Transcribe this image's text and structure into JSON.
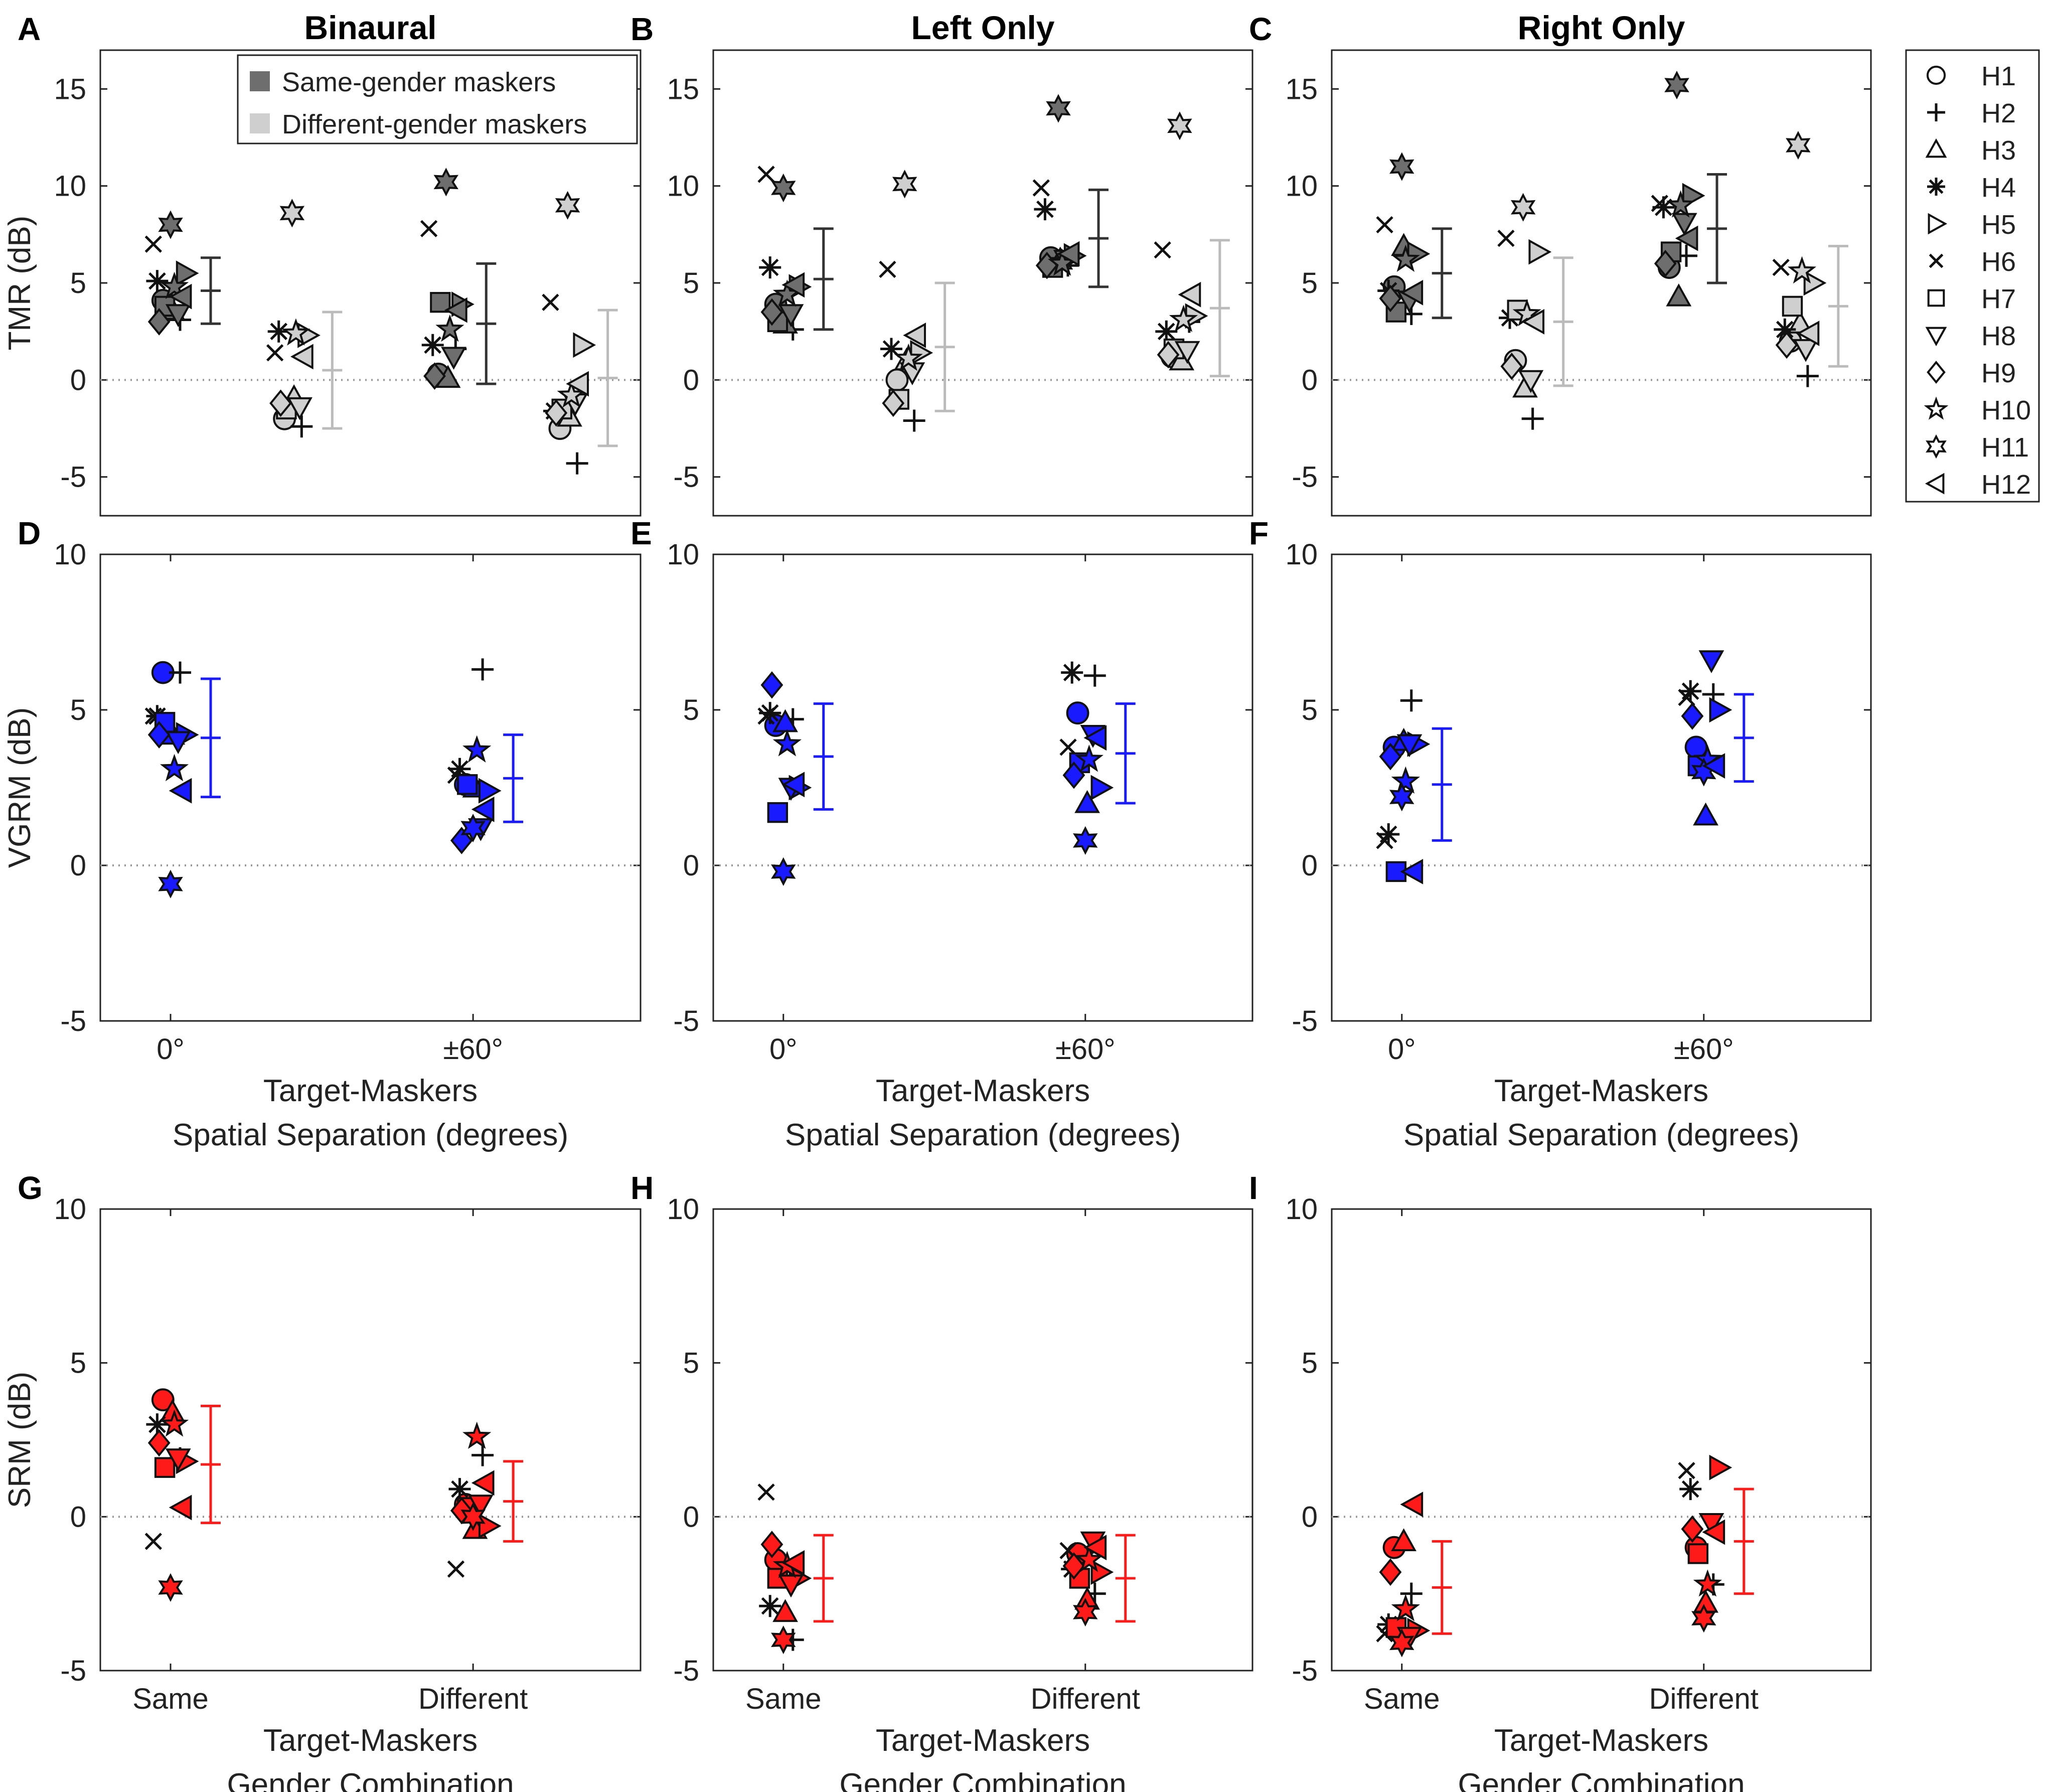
{
  "panels": [
    {
      "id": "A",
      "letter": "A",
      "title": "Binaural",
      "row": 0,
      "col": 0
    },
    {
      "id": "B",
      "letter": "B",
      "title": "Left Only",
      "row": 0,
      "col": 1
    },
    {
      "id": "C",
      "letter": "C",
      "title": "Right Only",
      "row": 0,
      "col": 2
    },
    {
      "id": "D",
      "letter": "D",
      "title": "",
      "row": 1,
      "col": 0
    },
    {
      "id": "E",
      "letter": "E",
      "title": "",
      "row": 1,
      "col": 1
    },
    {
      "id": "F",
      "letter": "F",
      "title": "",
      "row": 1,
      "col": 2
    },
    {
      "id": "G",
      "letter": "G",
      "title": "",
      "row": 2,
      "col": 0
    },
    {
      "id": "H",
      "letter": "H",
      "title": "",
      "row": 2,
      "col": 1
    },
    {
      "id": "I",
      "letter": "I",
      "title": "",
      "row": 2,
      "col": 2
    }
  ],
  "row_axes": [
    {
      "ylabel": "TMR (dB)",
      "ylim": [
        -7,
        17
      ],
      "yticks": [
        -5,
        0,
        5,
        10,
        15
      ],
      "xticks": [],
      "xlabel_lines": []
    },
    {
      "ylabel": "VGRM (dB)",
      "ylim": [
        -5,
        10
      ],
      "yticks": [
        -5,
        0,
        5,
        10
      ],
      "xticks": [
        "0°",
        "±60°"
      ],
      "xlabel_lines": [
        "Target-Maskers",
        "Spatial Separation (degrees)"
      ]
    },
    {
      "ylabel": "SRM (dB)",
      "ylim": [
        -5,
        10
      ],
      "yticks": [
        -5,
        0,
        5,
        10
      ],
      "xticks": [
        "Same",
        "Different"
      ],
      "xlabel_lines": [
        "Target-Maskers",
        "Gender Combination"
      ]
    }
  ],
  "tick_labels": {
    "zero_deg": "0°",
    "sixty_deg": "±60°"
  },
  "subject_legend": [
    {
      "label": "H1",
      "marker": "circle-icon"
    },
    {
      "label": "H2",
      "marker": "plus-icon"
    },
    {
      "label": "H3",
      "marker": "triangle-up-icon"
    },
    {
      "label": "H4",
      "marker": "asterisk-icon"
    },
    {
      "label": "H5",
      "marker": "triangle-right-icon"
    },
    {
      "label": "H6",
      "marker": "x-icon"
    },
    {
      "label": "H7",
      "marker": "square-icon"
    },
    {
      "label": "H8",
      "marker": "triangle-down-icon"
    },
    {
      "label": "H9",
      "marker": "diamond-icon"
    },
    {
      "label": "H10",
      "marker": "pentagram-icon"
    },
    {
      "label": "H11",
      "marker": "hexagram-icon"
    },
    {
      "label": "H12",
      "marker": "triangle-left-icon"
    }
  ],
  "condition_legend": [
    {
      "label": "Same-gender maskers",
      "color": "#6e6e6e"
    },
    {
      "label": "Different-gender maskers",
      "color": "#cfcfcf"
    }
  ],
  "colors": {
    "same": "#6e6e6e",
    "diff": "#cfcfcf",
    "same_err": "#333333",
    "diff_err": "#bbbbbb",
    "vgrm": "#1a1aff",
    "srm": "#ff1a1a"
  },
  "chart_data": [
    {
      "panel": "A",
      "type": "scatter",
      "conditions": [
        {
          "x": 1,
          "cat": "same",
          "values": [
            4.1,
            3.1,
            3.6,
            5.1,
            5.5,
            7.0,
            3.8,
            3.4,
            3.0,
            4.8,
            8.0,
            4.3
          ],
          "mean": 4.6,
          "err": 1.7
        },
        {
          "x": 2,
          "cat": "diff",
          "values": [
            -2.0,
            -2.4,
            -0.9,
            2.5,
            2.3,
            1.4,
            -1.5,
            -1.4,
            -1.2,
            2.4,
            8.6,
            1.2
          ],
          "mean": 0.5,
          "err": 3.0
        },
        {
          "x": 3,
          "cat": "same",
          "values": [
            0.3,
            1.6,
            0.1,
            1.8,
            3.9,
            7.8,
            4.0,
            1.2,
            0.2,
            2.6,
            10.2,
            3.6
          ],
          "mean": 2.9,
          "err": 3.1
        },
        {
          "x": 4,
          "cat": "diff",
          "values": [
            -2.5,
            -4.3,
            -1.9,
            -1.6,
            1.8,
            4.0,
            -1.5,
            -1.2,
            -1.7,
            -0.8,
            9.0,
            -0.2
          ],
          "mean": 0.1,
          "err": 3.5
        }
      ]
    },
    {
      "panel": "B",
      "type": "scatter",
      "conditions": [
        {
          "x": 1,
          "cat": "same",
          "values": [
            3.9,
            2.6,
            2.9,
            5.8,
            4.8,
            10.6,
            3.0,
            3.4,
            3.5,
            4.4,
            9.9,
            4.9
          ],
          "mean": 5.2,
          "err": 2.6
        },
        {
          "x": 2,
          "cat": "diff",
          "values": [
            0.0,
            -2.1,
            1.0,
            1.6,
            1.4,
            5.7,
            -1.0,
            0.4,
            -1.2,
            1.1,
            10.1,
            2.3
          ],
          "mean": 1.7,
          "err": 3.3
        },
        {
          "x": 3,
          "cat": "same",
          "values": [
            6.3,
            5.9,
            6.2,
            8.8,
            6.4,
            9.9,
            5.8,
            6.2,
            5.9,
            6.0,
            14.0,
            6.5
          ],
          "mean": 7.3,
          "err": 2.5
        },
        {
          "x": 4,
          "cat": "diff",
          "values": [
            1.2,
            3.0,
            1.0,
            2.5,
            3.3,
            6.7,
            1.6,
            1.5,
            1.3,
            3.1,
            13.1,
            4.4
          ],
          "mean": 3.7,
          "err": 3.5
        }
      ]
    },
    {
      "panel": "C",
      "type": "scatter",
      "conditions": [
        {
          "x": 1,
          "cat": "same",
          "values": [
            4.8,
            3.4,
            6.9,
            4.6,
            6.5,
            8.0,
            3.5,
            4.1,
            4.2,
            6.2,
            11.0,
            4.5
          ],
          "mean": 5.5,
          "err": 2.3
        },
        {
          "x": 2,
          "cat": "diff",
          "values": [
            1.0,
            -2.0,
            -0.4,
            3.2,
            6.6,
            7.3,
            3.6,
            0.0,
            0.7,
            3.4,
            8.9,
            3.0
          ],
          "mean": 3.0,
          "err": 3.3
        },
        {
          "x": 3,
          "cat": "same",
          "values": [
            5.8,
            6.4,
            4.3,
            8.9,
            9.5,
            9.1,
            6.6,
            8.1,
            6.0,
            9.0,
            15.2,
            7.3
          ],
          "mean": 7.8,
          "err": 2.8
        },
        {
          "x": 4,
          "cat": "diff",
          "values": [
            2.0,
            0.2,
            2.9,
            2.6,
            5.0,
            5.8,
            3.8,
            1.6,
            1.8,
            5.6,
            12.1,
            2.4
          ],
          "mean": 3.8,
          "err": 3.1
        }
      ]
    },
    {
      "panel": "D",
      "type": "scatter",
      "conditions": [
        {
          "x": 1,
          "cat": "vgrm",
          "values": [
            6.2,
            6.2,
            4.2,
            4.8,
            4.2,
            4.8,
            4.6,
            4.0,
            4.2,
            3.1,
            -0.6,
            2.4
          ],
          "mean": 4.1,
          "err": 1.9
        },
        {
          "x": 2,
          "cat": "vgrm",
          "values": [
            2.6,
            6.3,
            2.5,
            3.1,
            2.4,
            2.9,
            2.6,
            1.2,
            0.8,
            3.7,
            1.2,
            1.8
          ],
          "mean": 2.8,
          "err": 1.4
        }
      ]
    },
    {
      "panel": "E",
      "type": "scatter",
      "conditions": [
        {
          "x": 1,
          "cat": "vgrm",
          "values": [
            4.5,
            4.7,
            4.6,
            4.9,
            2.5,
            4.8,
            1.7,
            2.5,
            5.8,
            3.9,
            -0.2,
            2.6
          ],
          "mean": 3.5,
          "err": 1.7
        },
        {
          "x": 2,
          "cat": "vgrm",
          "values": [
            4.9,
            6.1,
            2.0,
            6.2,
            2.5,
            3.8,
            3.3,
            4.2,
            2.9,
            3.4,
            0.8,
            4.1
          ],
          "mean": 3.6,
          "err": 1.6
        }
      ]
    },
    {
      "panel": "F",
      "type": "scatter",
      "conditions": [
        {
          "x": 1,
          "cat": "vgrm",
          "values": [
            3.8,
            5.3,
            4.0,
            1.0,
            3.9,
            0.8,
            -0.2,
            3.9,
            3.5,
            2.7,
            2.2,
            -0.2
          ],
          "mean": 2.6,
          "err": 1.8
        },
        {
          "x": 2,
          "cat": "vgrm",
          "values": [
            3.8,
            5.5,
            1.6,
            5.6,
            5.0,
            5.4,
            3.2,
            6.6,
            4.8,
            3.4,
            3.0,
            3.2
          ],
          "mean": 4.1,
          "err": 1.4
        }
      ]
    },
    {
      "panel": "G",
      "type": "scatter",
      "conditions": [
        {
          "x": 1,
          "cat": "srm",
          "values": [
            3.8,
            1.9,
            3.4,
            3.0,
            1.8,
            -0.8,
            1.6,
            1.9,
            2.4,
            3.0,
            -2.3,
            0.3
          ],
          "mean": 1.7,
          "err": 1.9
        },
        {
          "x": 2,
          "cat": "srm",
          "values": [
            0.4,
            2.0,
            -0.4,
            0.9,
            -0.3,
            -1.7,
            0.3,
            0.4,
            0.2,
            2.6,
            0.0,
            1.1
          ],
          "mean": 0.5,
          "err": 1.3
        }
      ]
    },
    {
      "panel": "H",
      "type": "scatter",
      "conditions": [
        {
          "x": 1,
          "cat": "srm",
          "values": [
            -1.4,
            -4.0,
            -3.1,
            -2.9,
            -2.0,
            0.8,
            -2.0,
            -2.2,
            -0.9,
            -1.6,
            -4.0,
            -1.5
          ],
          "mean": -2.0,
          "err": 1.4
        },
        {
          "x": 2,
          "cat": "srm",
          "values": [
            -1.2,
            -2.5,
            -2.7,
            -1.7,
            -1.8,
            -1.1,
            -2.0,
            -0.8,
            -1.6,
            -1.4,
            -3.1,
            -1.0
          ],
          "mean": -2.0,
          "err": 1.4
        }
      ]
    },
    {
      "panel": "I",
      "type": "scatter",
      "conditions": [
        {
          "x": 1,
          "cat": "srm",
          "values": [
            -1.0,
            -2.5,
            -0.8,
            -3.5,
            -3.7,
            -3.8,
            -3.6,
            -3.9,
            -1.8,
            -3.0,
            -4.1,
            0.4
          ],
          "mean": -2.3,
          "err": 1.5
        },
        {
          "x": 2,
          "cat": "srm",
          "values": [
            -1.0,
            -2.2,
            -2.8,
            0.9,
            1.6,
            1.5,
            -1.2,
            -0.2,
            -0.4,
            -2.2,
            -3.3,
            -0.5
          ],
          "mean": -0.8,
          "err": 1.7
        }
      ]
    }
  ]
}
